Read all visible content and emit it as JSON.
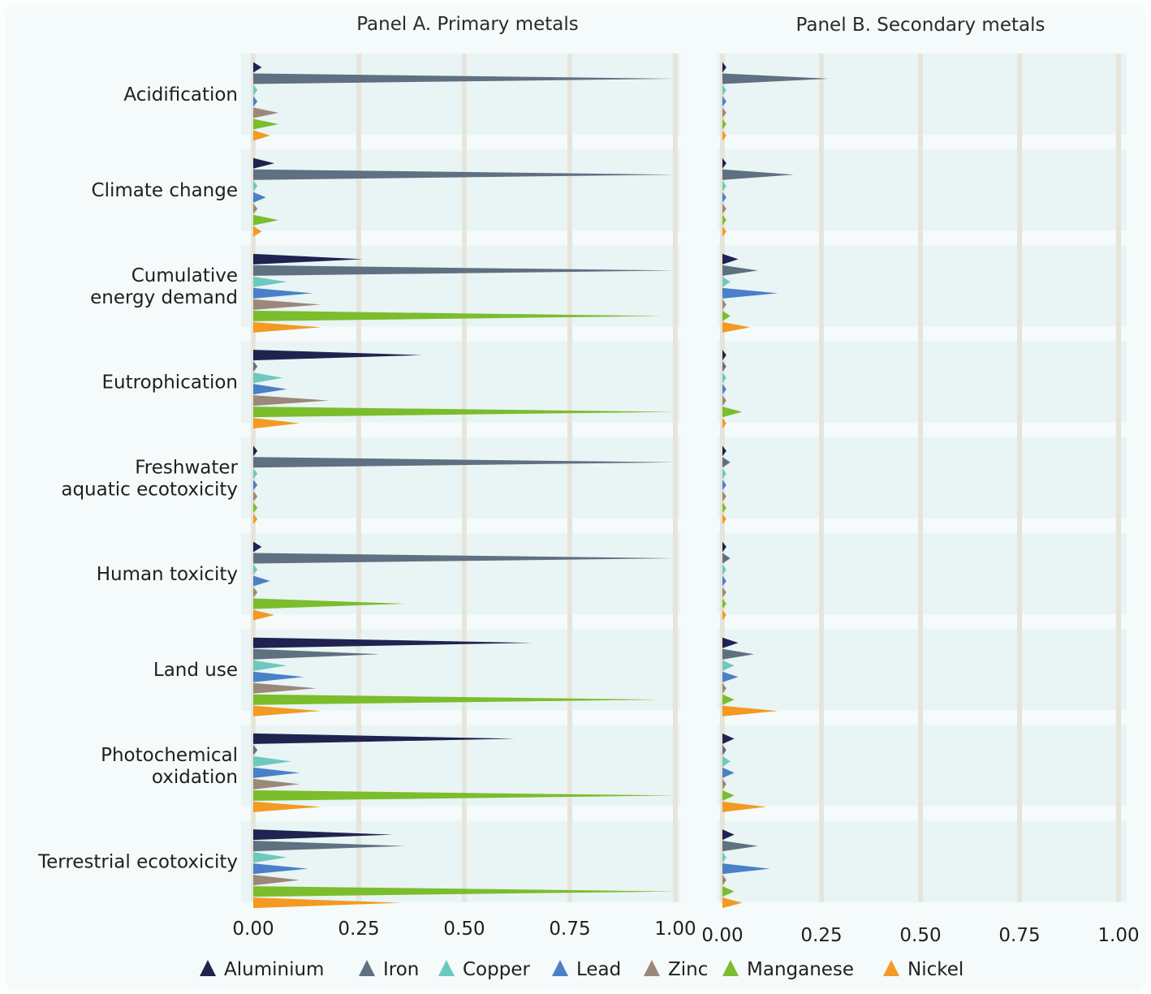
{
  "chart_data": {
    "type": "bar",
    "style": "horizontal spike bars",
    "categories": [
      "Acidification",
      "Climate change",
      "Cumulative energy demand",
      "Eutrophication",
      "Freshwater aquatic ecotoxicity",
      "Human toxicity",
      "Land use",
      "Photochemical oxidation",
      "Terrestrial ecotoxicity"
    ],
    "category_lines": [
      [
        "Acidification"
      ],
      [
        "Climate change"
      ],
      [
        "Cumulative",
        "energy demand"
      ],
      [
        "Eutrophication"
      ],
      [
        "Freshwater",
        "aquatic ecotoxicity"
      ],
      [
        "Human toxicity"
      ],
      [
        "Land use"
      ],
      [
        "Photochemical",
        "oxidation"
      ],
      [
        "Terrestrial ecotoxicity"
      ]
    ],
    "series_names": [
      "Aluminium",
      "Iron",
      "Copper",
      "Lead",
      "Zinc",
      "Manganese",
      "Nickel"
    ],
    "colors": [
      "#1e2350",
      "#5f7080",
      "#6cc9bf",
      "#4a80c8",
      "#9c8878",
      "#7bbd2c",
      "#f39a22"
    ],
    "xlim": [
      0,
      1
    ],
    "ticks": [
      0,
      0.25,
      0.5,
      0.75,
      1.0
    ],
    "tick_labels": [
      "0.00",
      "0.25",
      "0.50",
      "0.75",
      "1.00"
    ],
    "legend_position": "bottom",
    "panels": [
      {
        "title": "Panel A. Primary metals",
        "values": [
          [
            0.02,
            1.0,
            0.01,
            0.01,
            0.06,
            0.06,
            0.04
          ],
          [
            0.05,
            1.0,
            0.01,
            0.03,
            0.01,
            0.06,
            0.02
          ],
          [
            0.26,
            1.0,
            0.08,
            0.14,
            0.16,
            0.97,
            0.16
          ],
          [
            0.4,
            0.01,
            0.07,
            0.08,
            0.18,
            1.0,
            0.11
          ],
          [
            0.01,
            1.0,
            0.01,
            0.01,
            0.01,
            0.01,
            0.01
          ],
          [
            0.02,
            1.0,
            0.01,
            0.04,
            0.01,
            0.36,
            0.05
          ],
          [
            0.66,
            0.3,
            0.08,
            0.12,
            0.15,
            0.96,
            0.16
          ],
          [
            0.62,
            0.01,
            0.09,
            0.11,
            0.11,
            1.0,
            0.16
          ],
          [
            0.33,
            0.36,
            0.08,
            0.13,
            0.11,
            1.0,
            0.35
          ]
        ]
      },
      {
        "title": "Panel B. Secondary metals",
        "values": [
          [
            0.01,
            0.27,
            0.01,
            0.01,
            0.01,
            0.01,
            0.01
          ],
          [
            0.01,
            0.18,
            0.01,
            0.01,
            0.01,
            0.01,
            0.01
          ],
          [
            0.04,
            0.09,
            0.02,
            0.14,
            0.01,
            0.02,
            0.07
          ],
          [
            0.01,
            0.01,
            0.01,
            0.01,
            0.01,
            0.05,
            0.01
          ],
          [
            0.01,
            0.02,
            0.01,
            0.01,
            0.01,
            0.01,
            0.01
          ],
          [
            0.01,
            0.02,
            0.01,
            0.01,
            0.01,
            0.01,
            0.01
          ],
          [
            0.04,
            0.08,
            0.03,
            0.04,
            0.01,
            0.03,
            0.14
          ],
          [
            0.03,
            0.01,
            0.02,
            0.03,
            0.01,
            0.03,
            0.11
          ],
          [
            0.03,
            0.09,
            0.01,
            0.12,
            0.01,
            0.03,
            0.05
          ]
        ]
      }
    ]
  }
}
